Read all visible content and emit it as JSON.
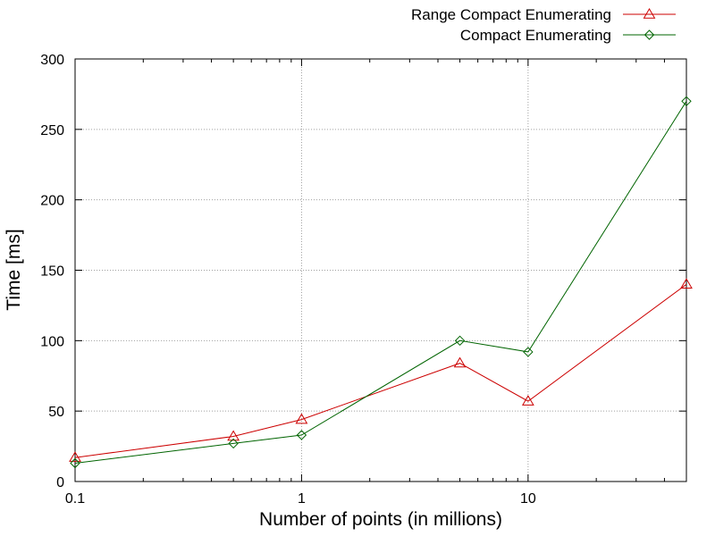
{
  "chart_data": {
    "type": "line",
    "title": "",
    "xlabel": "Number of points (in millions)",
    "ylabel": "Time [ms]",
    "x_scale": "log",
    "xlim": [
      0.1,
      50
    ],
    "ylim": [
      0,
      300
    ],
    "x_ticks": [
      0.1,
      1,
      10
    ],
    "x_tick_labels": [
      "0.1",
      "1",
      "10"
    ],
    "y_ticks": [
      0,
      50,
      100,
      150,
      200,
      250,
      300
    ],
    "y_tick_labels": [
      "0",
      "50",
      "100",
      "150",
      "200",
      "250",
      "300"
    ],
    "grid": true,
    "legend_position": "top-right, outside plot",
    "x": [
      0.1,
      0.5,
      1,
      5,
      10,
      50
    ],
    "series": [
      {
        "name": "Range Compact Enumerating",
        "color": "#cc0000",
        "marker": "triangle",
        "values": [
          17,
          32,
          44,
          84,
          57,
          140
        ]
      },
      {
        "name": "Compact Enumerating",
        "color": "#006400",
        "marker": "diamond",
        "values": [
          13,
          27,
          33,
          100,
          92,
          270
        ]
      }
    ]
  }
}
